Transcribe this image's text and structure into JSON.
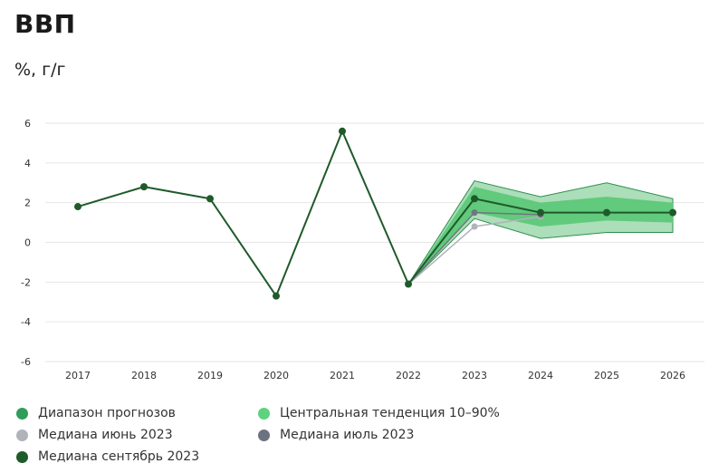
{
  "title": "ВВП",
  "subtitle": "%, г/г",
  "colors": {
    "range_outer": "#9cd8ad",
    "range_outer_edge": "#2f8f4e",
    "central": "#5dc878",
    "median_july": "#b0b3b8",
    "median_july_dark": "#707680",
    "median_sept": "#1f5a2a",
    "grid": "#e6e6e6"
  },
  "legend": [
    {
      "label": "Диапазон прогнозов",
      "color": "#2e9d5b"
    },
    {
      "label": "Центральная тенденция 10–90%",
      "color": "#5dd27f"
    },
    {
      "label": "Медиана июнь 2023",
      "color": "#b0b3b8"
    },
    {
      "label": "Медиана июль 2023",
      "color": "#6c7280"
    },
    {
      "label": "Медиана сентябрь 2023",
      "color": "#1f5a2a"
    }
  ],
  "chart_data": {
    "type": "line",
    "title": "ВВП",
    "subtitle": "%, г/г",
    "x": [
      "2017",
      "2018",
      "2019",
      "2020",
      "2021",
      "2022",
      "2023",
      "2024",
      "2025",
      "2026"
    ],
    "ylim": [
      -6,
      6
    ],
    "yticks": [
      "6",
      "4",
      "2",
      "0",
      "-2",
      "-4",
      "-6"
    ],
    "grid": true,
    "legend_position": "bottom",
    "series": [
      {
        "name": "Медиана сентябрь 2023",
        "values": [
          1.8,
          2.8,
          2.2,
          -2.7,
          5.6,
          -2.1,
          2.2,
          1.5,
          1.5,
          1.5
        ]
      },
      {
        "name": "Медиана июль 2023",
        "values": [
          null,
          null,
          null,
          null,
          null,
          -2.1,
          1.5,
          1.4,
          null,
          null
        ]
      },
      {
        "name": "Медиана июнь 2023",
        "values": [
          null,
          null,
          null,
          null,
          null,
          -2.1,
          0.8,
          1.3,
          null,
          null
        ]
      }
    ],
    "bands": [
      {
        "name": "Диапазон прогнозов",
        "x": [
          "2022",
          "2023",
          "2024",
          "2025",
          "2026"
        ],
        "low": [
          -2.1,
          1.2,
          0.2,
          0.5,
          0.5
        ],
        "high": [
          -2.1,
          3.1,
          2.3,
          3.0,
          2.2
        ]
      },
      {
        "name": "Центральная тенденция 10–90%",
        "x": [
          "2022",
          "2023",
          "2024",
          "2025",
          "2026"
        ],
        "low": [
          -2.1,
          1.5,
          0.8,
          1.1,
          1.0
        ],
        "high": [
          -2.1,
          2.8,
          2.0,
          2.3,
          2.0
        ]
      }
    ]
  }
}
